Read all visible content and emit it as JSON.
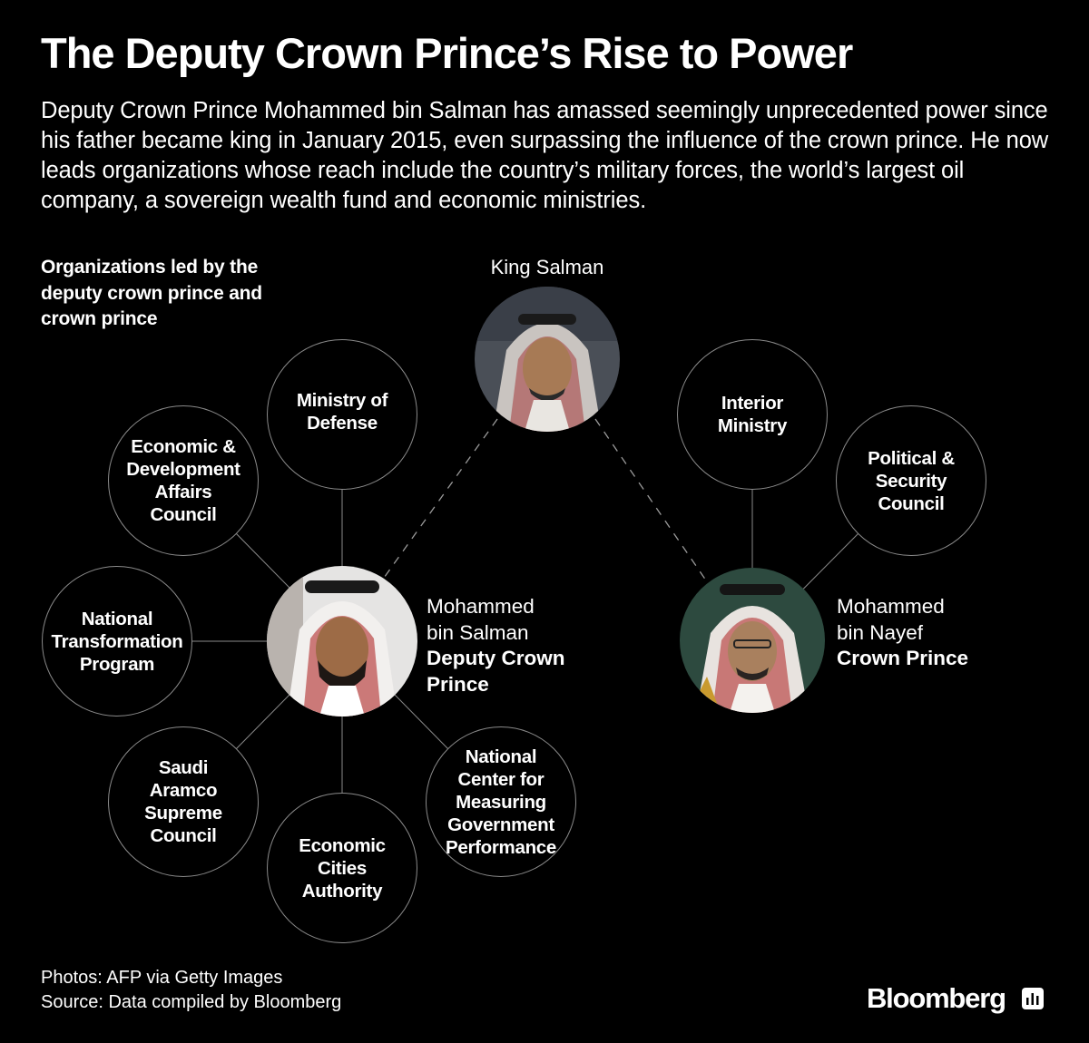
{
  "header": {
    "title": "The Deputy Crown Prince’s Rise to Power",
    "subtitle": "Deputy Crown Prince Mohammed bin Salman has amassed seemingly unprecedented power since his father became king in January 2015, even surpassing the influence of the crown prince. He now leads organizations whose reach include the country’s military forces, the world’s largest oil company, a sovereign wealth fund and economic ministries."
  },
  "section_label": "Organizations led by the deputy crown prince and crown prince",
  "king": {
    "label": "King Salman"
  },
  "deputy": {
    "name_line1": "Mohammed",
    "name_line2": "bin Salman",
    "role_line1": "Deputy Crown",
    "role_line2": "Prince",
    "organizations": [
      [
        "Ministry of",
        "Defense"
      ],
      [
        "Economic &",
        "Development",
        "Affairs",
        "Council"
      ],
      [
        "National",
        "Transformation",
        "Program"
      ],
      [
        "Saudi",
        "Aramco",
        "Supreme",
        "Council"
      ],
      [
        "Economic",
        "Cities",
        "Authority"
      ],
      [
        "National",
        "Center for",
        "Measuring",
        "Government",
        "Performance"
      ]
    ]
  },
  "crown": {
    "name_line1": "Mohammed",
    "name_line2": "bin Nayef",
    "role": "Crown Prince",
    "organizations": [
      [
        "Interior",
        "Ministry"
      ],
      [
        "Political &",
        "Security",
        "Council"
      ]
    ]
  },
  "footer": {
    "photos": "Photos: AFP via Getty Images",
    "source": "Source: Data compiled by Bloomberg"
  },
  "brand": "Bloomberg",
  "colors": {
    "background": "#000000",
    "text": "#ffffff",
    "lines": "#8a8a8a"
  }
}
